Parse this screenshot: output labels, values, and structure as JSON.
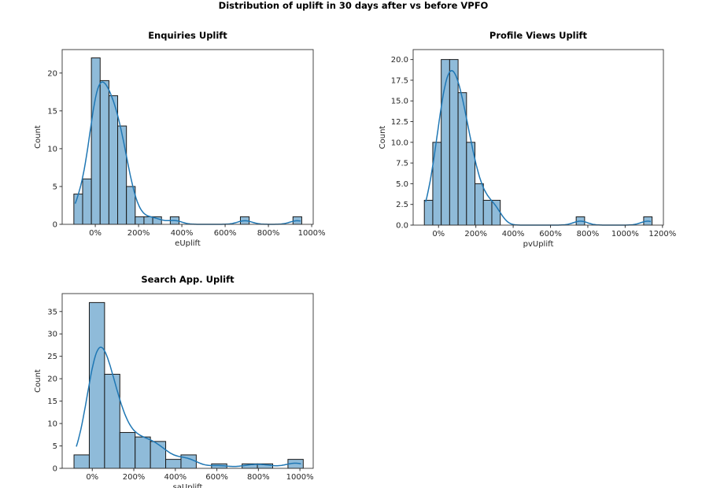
{
  "suptitle": "Distribution of uplift in 30 days after vs before VPFO",
  "colors": {
    "bar_fill": "#8fbbd9",
    "bar_edge": "#1a1a1a",
    "kde_line": "#1f77b4",
    "axes": "#333333"
  },
  "chart_data": [
    {
      "type": "bar",
      "subtype": "histogram-with-kde",
      "title": "Enquiries Uplift",
      "xlabel": "eUplift",
      "ylabel": "Count",
      "xlim": [
        -153,
        1007
      ],
      "ylim": [
        0,
        23.1
      ],
      "bin_start": -99,
      "bin_width": 40.5,
      "counts": [
        4,
        6,
        22,
        19,
        17,
        13,
        5,
        1,
        1,
        1,
        0,
        1,
        0,
        0,
        0,
        0,
        0,
        0,
        0,
        1,
        0,
        0,
        0,
        0,
        0,
        1
      ],
      "xticks": [
        0,
        200,
        400,
        600,
        800,
        1000
      ],
      "xtick_labels": [
        "0%",
        "200%",
        "400%",
        "600%",
        "800%",
        "1000%"
      ],
      "yticks": [
        0,
        5,
        10,
        15,
        20
      ],
      "ytick_labels": [
        "0",
        "5",
        "10",
        "15",
        "20"
      ],
      "grid": false,
      "kde": true
    },
    {
      "type": "bar",
      "subtype": "histogram-with-kde",
      "title": "Profile Views Uplift",
      "xlabel": "pvUplift",
      "ylabel": "Count",
      "xlim": [
        -136,
        1205
      ],
      "ylim": [
        0,
        21.2
      ],
      "bin_start": -76,
      "bin_width": 45.2,
      "counts": [
        3,
        10,
        20,
        20,
        16,
        10,
        5,
        3,
        3,
        0,
        0,
        0,
        0,
        0,
        0,
        0,
        0,
        0,
        1,
        0,
        0,
        0,
        0,
        0,
        0,
        0,
        1
      ],
      "xticks": [
        0,
        200,
        400,
        600,
        800,
        1000,
        1200
      ],
      "xtick_labels": [
        "0%",
        "200%",
        "400%",
        "600%",
        "800%",
        "1000%",
        "1200%"
      ],
      "yticks": [
        0,
        2.5,
        5,
        7.5,
        10,
        12.5,
        15,
        17.5,
        20
      ],
      "ytick_labels": [
        "0.0",
        "2.5",
        "5.0",
        "7.5",
        "10.0",
        "12.5",
        "15.0",
        "17.5",
        "20.0"
      ],
      "grid": false,
      "kde": true
    },
    {
      "type": "bar",
      "subtype": "histogram-with-kde",
      "title": "Search App. Uplift",
      "xlabel": "saUplift",
      "ylabel": "Count",
      "xlim": [
        -145,
        1064
      ],
      "ylim": [
        0,
        39
      ],
      "bin_start": -88,
      "bin_width": 73.6,
      "counts": [
        3,
        37,
        21,
        8,
        7,
        6,
        2,
        3,
        0,
        1,
        0,
        1,
        1,
        0,
        2
      ],
      "xticks": [
        0,
        200,
        400,
        600,
        800,
        1000
      ],
      "xtick_labels": [
        "0%",
        "200%",
        "400%",
        "600%",
        "800%",
        "1000%"
      ],
      "yticks": [
        0,
        5,
        10,
        15,
        20,
        25,
        30,
        35
      ],
      "ytick_labels": [
        "0",
        "5",
        "10",
        "15",
        "20",
        "25",
        "30",
        "35"
      ],
      "grid": false,
      "kde": true
    }
  ]
}
